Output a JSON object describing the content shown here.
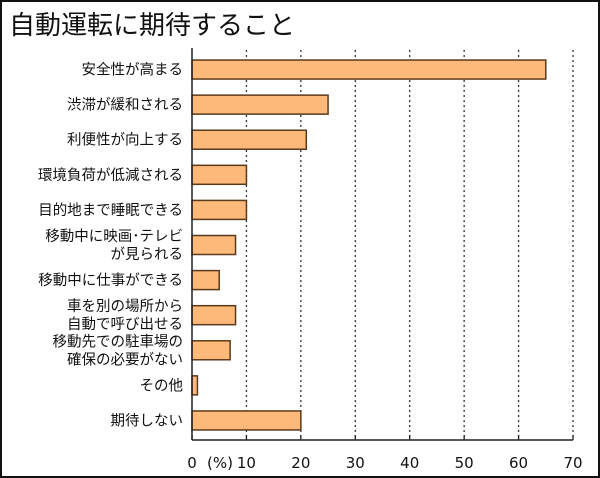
{
  "chart_data": {
    "type": "bar",
    "orientation": "horizontal",
    "title": "自動運転に期待すること",
    "xlabel": "(%)",
    "ylabel": "",
    "xlim": [
      0,
      70
    ],
    "xticks": [
      0,
      10,
      20,
      30,
      40,
      50,
      60,
      70
    ],
    "tick_labels": [
      "0",
      "10",
      "20",
      "30",
      "40",
      "50",
      "60",
      "70"
    ],
    "unit_label": "(%)",
    "grid": true,
    "categories": [
      [
        "安全性が高まる"
      ],
      [
        "渋滞が緩和される"
      ],
      [
        "利便性が向上する"
      ],
      [
        "環境負荷が低減される"
      ],
      [
        "目的地まで睡眠できる"
      ],
      [
        "移動中に映画･テレビ",
        "が見られる"
      ],
      [
        "移動中に仕事ができる"
      ],
      [
        "車を別の場所から",
        "自動で呼び出せる"
      ],
      [
        "移動先での駐車場の",
        "確保の必要がない"
      ],
      [
        "その他"
      ],
      [
        "期待しない"
      ]
    ],
    "values": [
      65,
      25,
      21,
      10,
      10,
      8,
      5,
      8,
      7,
      1,
      20
    ],
    "bar_color": "#FDB97A",
    "bar_edge_color": "#5a3a1a"
  }
}
